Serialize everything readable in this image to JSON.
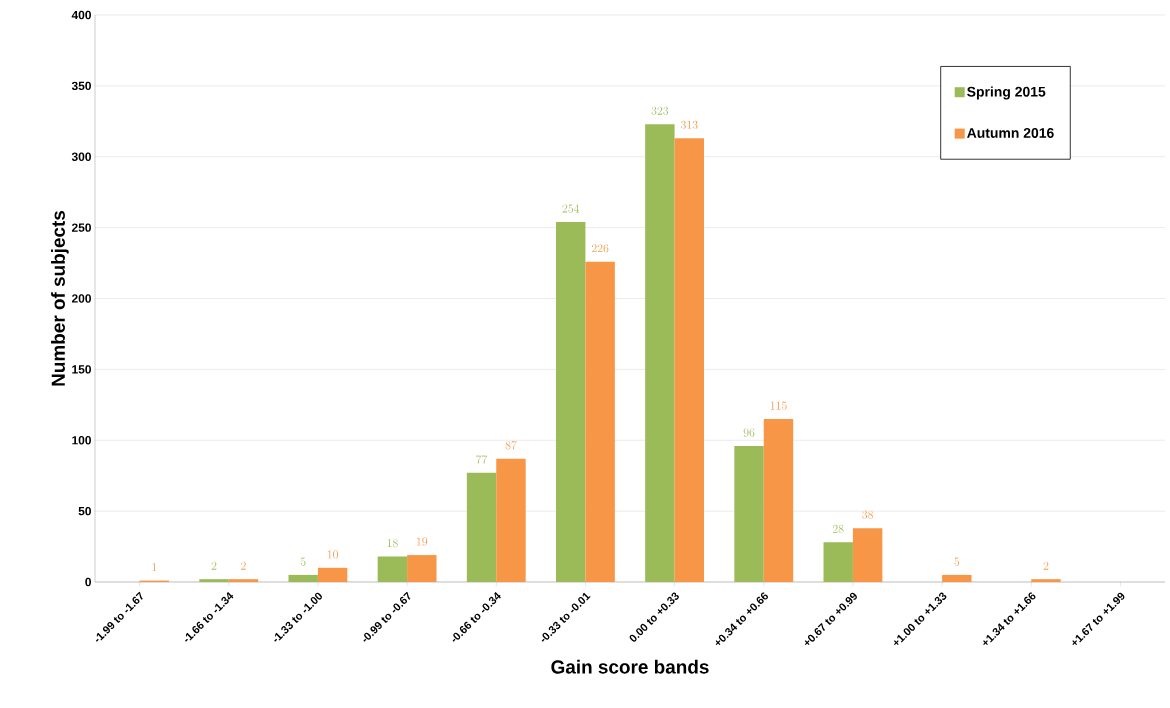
{
  "chart_data": {
    "type": "bar",
    "xlabel": "Gain score bands",
    "ylabel": "Number of subjects",
    "categories": [
      "-1.99 to -1.67",
      "-1.66 to -1.34",
      "-1.33 to -1.00",
      "-0.99 to -0.67",
      "-0.66 to -0.34",
      "-0.33 to -0.01",
      "0.00 to +0.33",
      "+0.34 to +0.66",
      "+0.67 to +0.99",
      "+1.00 to +1.33",
      "+1.34 to +1.66",
      "+1.67 to +1.99"
    ],
    "series": [
      {
        "name": "Spring 2015",
        "color": "#9bbb59",
        "values": [
          null,
          2,
          5,
          18,
          77,
          254,
          323,
          96,
          28,
          null,
          null,
          null
        ]
      },
      {
        "name": "Autumn 2016",
        "color": "#f79646",
        "values": [
          1,
          2,
          10,
          19,
          87,
          226,
          313,
          115,
          38,
          5,
          2,
          null
        ]
      }
    ],
    "ylim": [
      0,
      400
    ],
    "yticks": [
      0,
      50,
      100,
      150,
      200,
      250,
      300,
      350,
      400
    ],
    "grid": "y",
    "legend": "top right",
    "data_labels": true
  }
}
